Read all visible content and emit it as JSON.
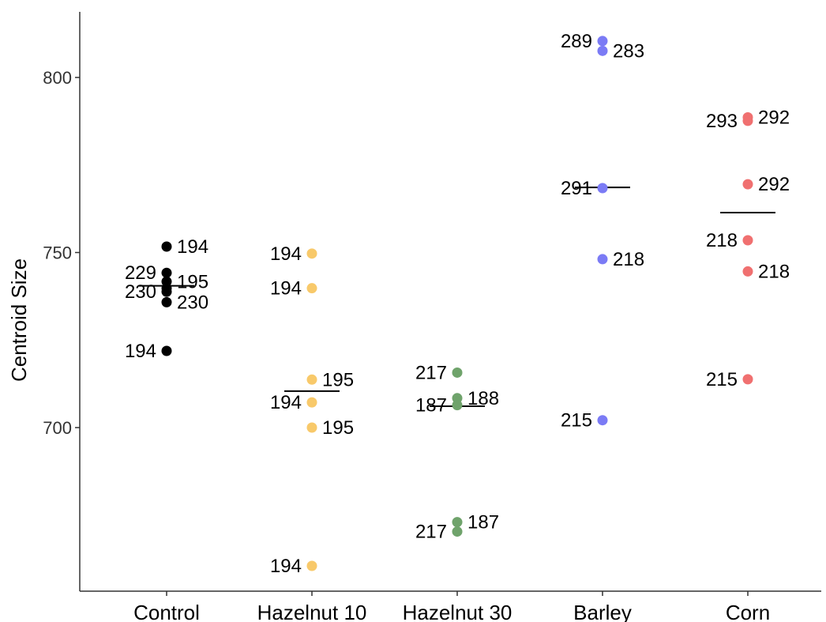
{
  "chart_data": {
    "type": "scatter",
    "title": "",
    "xlabel": "",
    "ylabel": "Centroid Size",
    "ylim": [
      660,
      818
    ],
    "yticks": [
      700,
      750,
      800
    ],
    "grid": false,
    "categories": [
      "Control",
      "Hazelnut 10",
      "Hazelnut 30",
      "Barley",
      "Corn"
    ],
    "series": [
      {
        "category": "Control",
        "color": "#000000",
        "mean": 740.5,
        "points": [
          {
            "y": 751.7,
            "label": "194",
            "side": "right"
          },
          {
            "y": 744.2,
            "label": "229",
            "side": "left"
          },
          {
            "y": 741.7,
            "label": "195",
            "side": "right"
          },
          {
            "y": 739.8,
            "label": "",
            "side": "right"
          },
          {
            "y": 738.8,
            "label": "230",
            "side": "left"
          },
          {
            "y": 735.8,
            "label": "230",
            "side": "right"
          },
          {
            "y": 721.9,
            "label": "194",
            "side": "left"
          }
        ]
      },
      {
        "category": "Hazelnut 10",
        "color": "#F8C96A",
        "mean": 710.4,
        "points": [
          {
            "y": 749.7,
            "label": "194",
            "side": "left"
          },
          {
            "y": 739.8,
            "label": "194",
            "side": "left"
          },
          {
            "y": 713.7,
            "label": "195",
            "side": "right"
          },
          {
            "y": 707.2,
            "label": "194",
            "side": "left"
          },
          {
            "y": 700.0,
            "label": "195",
            "side": "right"
          },
          {
            "y": 660.5,
            "label": "194",
            "side": "left"
          }
        ]
      },
      {
        "category": "Hazelnut 30",
        "color": "#6FA36B",
        "mean": 706.1,
        "points": [
          {
            "y": 715.7,
            "label": "217",
            "side": "left"
          },
          {
            "y": 708.4,
            "label": "188",
            "side": "right"
          },
          {
            "y": 706.4,
            "label": "187",
            "side": "left"
          },
          {
            "y": 673.0,
            "label": "187",
            "side": "right"
          },
          {
            "y": 670.3,
            "label": "217",
            "side": "left"
          }
        ]
      },
      {
        "category": "Barley",
        "color": "#7B7BF5",
        "mean": 768.6,
        "points": [
          {
            "y": 810.4,
            "label": "289",
            "side": "left"
          },
          {
            "y": 807.6,
            "label": "283",
            "side": "right"
          },
          {
            "y": 768.4,
            "label": "291",
            "side": "left"
          },
          {
            "y": 748.1,
            "label": "218",
            "side": "right"
          },
          {
            "y": 702.1,
            "label": "215",
            "side": "left"
          }
        ]
      },
      {
        "category": "Corn",
        "color": "#F07070",
        "mean": 761.4,
        "points": [
          {
            "y": 788.6,
            "label": "292",
            "side": "right"
          },
          {
            "y": 787.6,
            "label": "293",
            "side": "left"
          },
          {
            "y": 769.5,
            "label": "292",
            "side": "right"
          },
          {
            "y": 753.5,
            "label": "218",
            "side": "left"
          },
          {
            "y": 744.6,
            "label": "218",
            "side": "right"
          },
          {
            "y": 713.8,
            "label": "215",
            "side": "left"
          }
        ]
      }
    ]
  }
}
